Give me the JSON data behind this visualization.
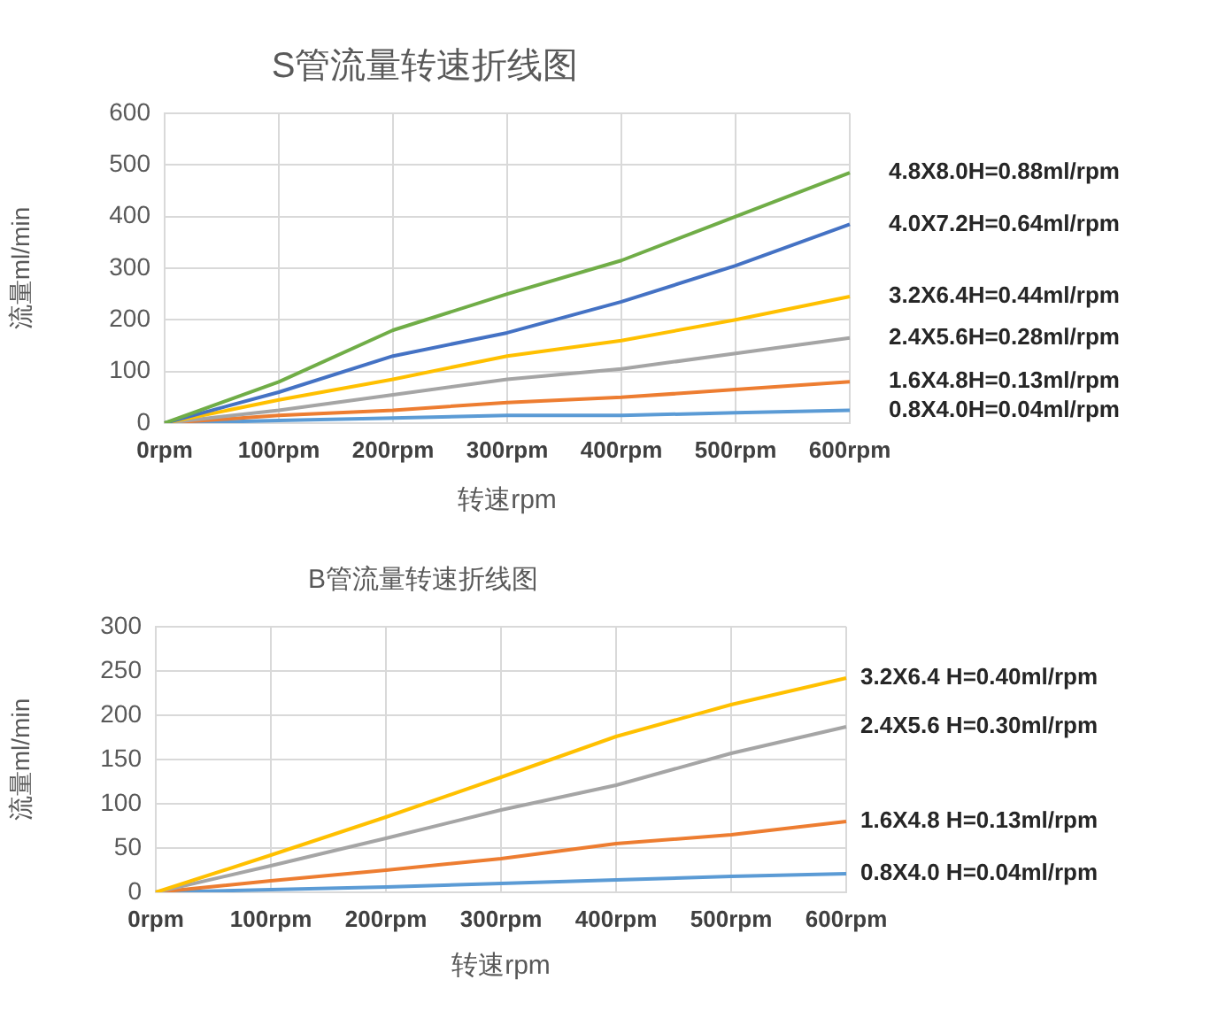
{
  "chart_data": [
    {
      "type": "line",
      "title": "S管流量转速折线图",
      "xlabel": "转速rpm",
      "ylabel": "流量ml/min",
      "categories": [
        "0rpm",
        "100rpm",
        "200rpm",
        "300rpm",
        "400rpm",
        "500rpm",
        "600rpm"
      ],
      "ylim": [
        0,
        600
      ],
      "yticks": [
        0,
        100,
        200,
        300,
        400,
        500,
        600
      ],
      "grid": true,
      "series": [
        {
          "name": "4.8X8.0H=0.88ml/rpm",
          "color": "#70ad47",
          "values": [
            0,
            80,
            180,
            250,
            315,
            400,
            485
          ]
        },
        {
          "name": "4.0X7.2H=0.64ml/rpm",
          "color": "#4472c4",
          "values": [
            0,
            60,
            130,
            175,
            235,
            305,
            385
          ]
        },
        {
          "name": "3.2X6.4H=0.44ml/rpm",
          "color": "#ffc000",
          "values": [
            0,
            45,
            85,
            130,
            160,
            200,
            245
          ]
        },
        {
          "name": "2.4X5.6H=0.28ml/rpm",
          "color": "#a5a5a5",
          "values": [
            0,
            25,
            55,
            85,
            105,
            135,
            165
          ]
        },
        {
          "name": "1.6X4.8H=0.13ml/rpm",
          "color": "#ed7d31",
          "values": [
            0,
            15,
            25,
            40,
            50,
            65,
            80
          ]
        },
        {
          "name": "0.8X4.0H=0.04ml/rpm",
          "color": "#5b9bd5",
          "values": [
            0,
            5,
            10,
            15,
            15,
            20,
            25
          ]
        }
      ]
    },
    {
      "type": "line",
      "title": "B管流量转速折线图",
      "xlabel": "转速rpm",
      "ylabel": "流量ml/min",
      "categories": [
        "0rpm",
        "100rpm",
        "200rpm",
        "300rpm",
        "400rpm",
        "500rpm",
        "600rpm"
      ],
      "ylim": [
        0,
        300
      ],
      "yticks": [
        0,
        50,
        100,
        150,
        200,
        250,
        300
      ],
      "grid": true,
      "series": [
        {
          "name": "3.2X6.4 H=0.40ml/rpm",
          "color": "#ffc000",
          "values": [
            0,
            42,
            85,
            130,
            176,
            212,
            242
          ]
        },
        {
          "name": "2.4X5.6 H=0.30ml/rpm",
          "color": "#a5a5a5",
          "values": [
            0,
            30,
            61,
            93,
            121,
            157,
            187
          ]
        },
        {
          "name": "1.6X4.8 H=0.13ml/rpm",
          "color": "#ed7d31",
          "values": [
            0,
            13,
            25,
            38,
            55,
            65,
            80
          ]
        },
        {
          "name": "0.8X4.0 H=0.04ml/rpm",
          "color": "#5b9bd5",
          "values": [
            0,
            3,
            6,
            10,
            14,
            18,
            21
          ]
        }
      ]
    }
  ]
}
